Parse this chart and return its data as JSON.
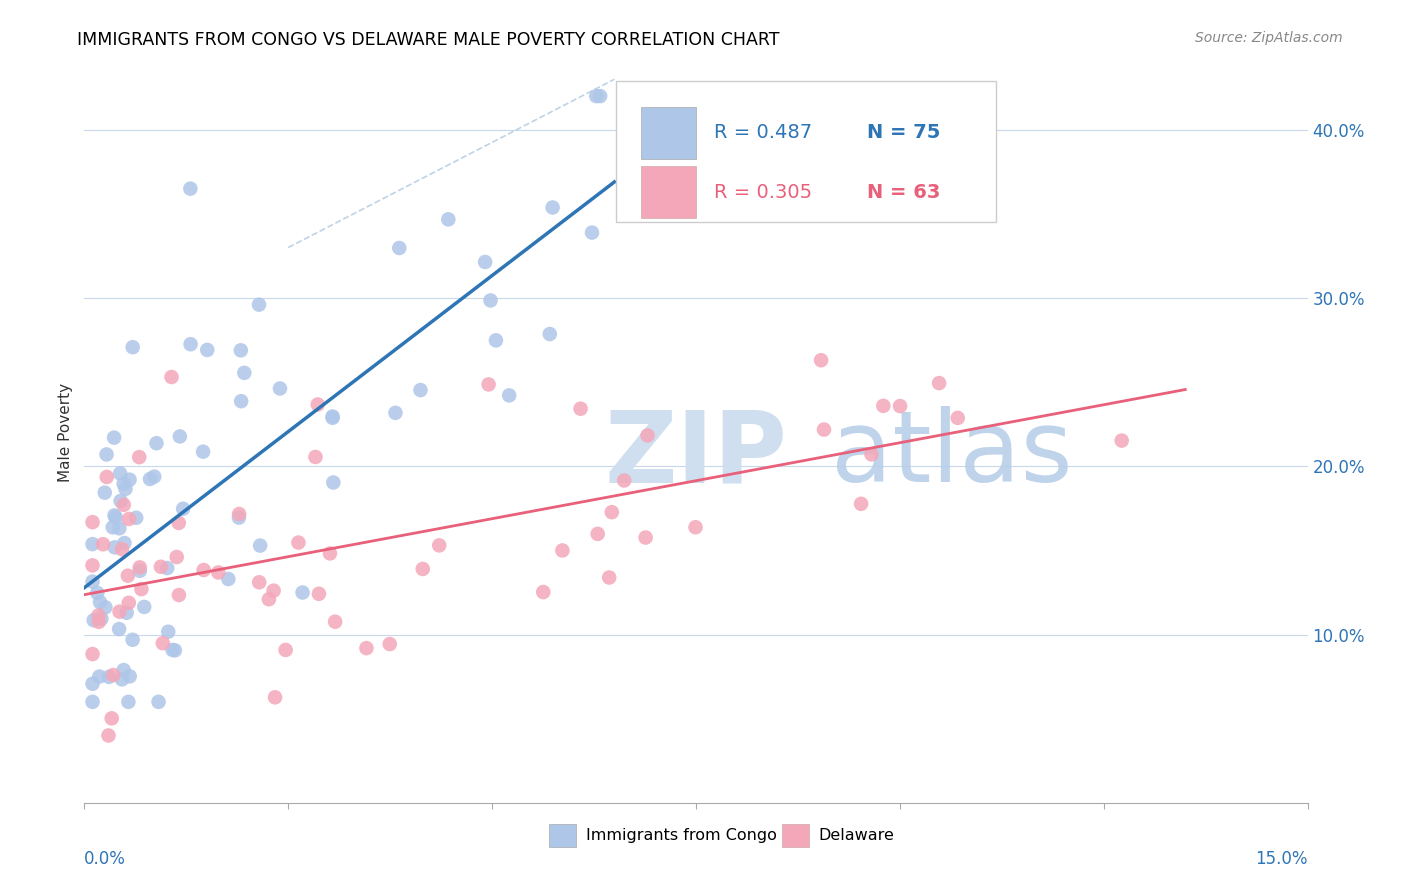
{
  "title": "IMMIGRANTS FROM CONGO VS DELAWARE MALE POVERTY CORRELATION CHART",
  "source": "Source: ZipAtlas.com",
  "ylabel": "Male Poverty",
  "color_blue": "#aec6e8",
  "color_pink": "#f4a7b9",
  "line_color_blue": "#2e75b6",
  "line_color_pink": "#e8607a",
  "watermark_zip_color": "#cfdff0",
  "watermark_atlas_color": "#b8cfe8",
  "title_fontsize": 12.5,
  "source_fontsize": 10,
  "legend_r1": "R = 0.487",
  "legend_n1": "N = 75",
  "legend_r2": "R = 0.305",
  "legend_n2": "N = 63",
  "xlim": [
    0.0,
    0.15
  ],
  "ylim": [
    0.0,
    0.44
  ],
  "yticks": [
    0.1,
    0.2,
    0.3,
    0.4
  ],
  "ytick_labels": [
    "10.0%",
    "20.0%",
    "30.0%",
    "40.0%"
  ]
}
